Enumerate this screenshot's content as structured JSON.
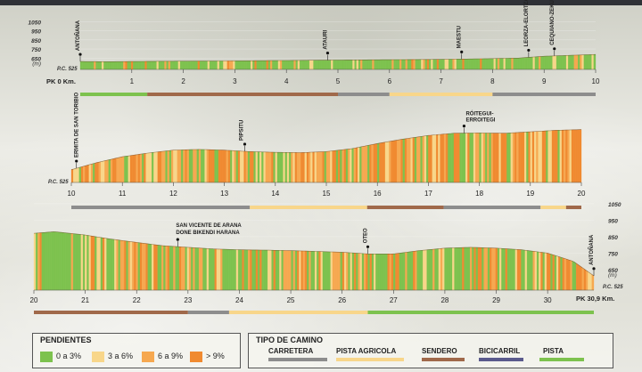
{
  "colors": {
    "grade_0_3": "#7dc24e",
    "grade_3_6": "#f8d68a",
    "grade_6_9": "#f6a850",
    "grade_9_plus": "#f08a30",
    "carretera": "#8d8d8d",
    "pista_agricola": "#f8d68a",
    "sendero": "#a0694a",
    "bicicarril": "#5a5a8c",
    "pista": "#7dc24e"
  },
  "legend": {
    "pendientes": {
      "title": "PENDIENTES",
      "items": [
        {
          "label": "0 a 3%",
          "color_key": "grade_0_3"
        },
        {
          "label": "3 a 6%",
          "color_key": "grade_3_6"
        },
        {
          "label": "6 a 9%",
          "color_key": "grade_6_9"
        },
        {
          "label": "> 9%",
          "color_key": "grade_9_plus"
        }
      ]
    },
    "tipo": {
      "title": "TIPO DE CAMINO",
      "items": [
        {
          "label": "CARRETERA",
          "color_key": "carretera"
        },
        {
          "label": "PISTA AGRICOLA",
          "color_key": "pista_agricola"
        },
        {
          "label": "SENDERO",
          "color_key": "sendero"
        },
        {
          "label": "BICICARRIL",
          "color_key": "bicicarril"
        },
        {
          "label": "PISTA",
          "color_key": "pista"
        }
      ]
    }
  },
  "chart_data": [
    {
      "type": "area",
      "x_range": [
        0,
        10
      ],
      "y_ticks": [
        650,
        750,
        850,
        950,
        1050
      ],
      "y_unit": "(m)",
      "pc_label": "P.C. 525",
      "start_label": "PK 0 Km.",
      "x_ticks": [
        "1",
        "2",
        "3",
        "4",
        "5",
        "6",
        "7",
        "8",
        "9",
        "10"
      ],
      "profile_km": [
        0,
        0.5,
        1,
        1.5,
        2,
        2.5,
        3,
        3.5,
        4,
        4.5,
        5,
        5.5,
        6,
        6.5,
        7,
        7.5,
        8,
        8.5,
        9,
        9.5,
        10
      ],
      "profile_m": [
        612,
        610,
        612,
        615,
        616,
        617,
        619,
        621,
        623,
        626,
        628,
        630,
        632,
        634,
        636,
        640,
        645,
        650,
        670,
        680,
        690
      ],
      "places": [
        {
          "name": "ANTOÑANA",
          "km": 0.0
        },
        {
          "name": "ATAURI",
          "km": 4.8
        },
        {
          "name": "MAESTU",
          "km": 7.4
        },
        {
          "name": "LEORZA-ELORTZA",
          "km": 8.7
        },
        {
          "name": "CEQUIANO-ZEKUIANO",
          "km": 9.2
        }
      ],
      "road": [
        {
          "from": 0.0,
          "to": 1.3,
          "type": "pista"
        },
        {
          "from": 1.3,
          "to": 5.0,
          "type": "sendero"
        },
        {
          "from": 5.0,
          "to": 6.0,
          "type": "carretera"
        },
        {
          "from": 6.0,
          "to": 7.0,
          "type": "pista_agricola"
        },
        {
          "from": 7.0,
          "to": 8.0,
          "type": "pista_agricola"
        },
        {
          "from": 8.0,
          "to": 10.0,
          "type": "carretera"
        }
      ]
    },
    {
      "type": "area",
      "x_range": [
        10,
        20
      ],
      "pc_label": "P.C. 525",
      "x_ticks": [
        "10",
        "11",
        "12",
        "13",
        "14",
        "15",
        "16",
        "17",
        "18",
        "19",
        "20"
      ],
      "profile_km": [
        10,
        10.5,
        11,
        11.5,
        12,
        12.5,
        13,
        13.5,
        14,
        14.5,
        15,
        15.5,
        16,
        16.5,
        17,
        17.5,
        18,
        18.5,
        19,
        19.5,
        20
      ],
      "profile_m": [
        612,
        660,
        700,
        725,
        745,
        750,
        745,
        735,
        730,
        728,
        735,
        755,
        790,
        820,
        845,
        860,
        862,
        860,
        870,
        880,
        885
      ],
      "places": [
        {
          "name": "ERMITA DE SAN TORIBIO",
          "km": 10.1
        },
        {
          "name": "PIPSITU",
          "km": 13.4
        },
        {
          "name": "RÓITEGUI-ERROITEGI",
          "km": 17.7
        }
      ],
      "road": [
        {
          "from": 10.0,
          "to": 13.5,
          "type": "carretera"
        },
        {
          "from": 13.5,
          "to": 15.8,
          "type": "pista_agricola"
        },
        {
          "from": 15.8,
          "to": 17.3,
          "type": "sendero"
        },
        {
          "from": 17.3,
          "to": 19.2,
          "type": "carretera"
        },
        {
          "from": 19.2,
          "to": 19.7,
          "type": "pista_agricola"
        },
        {
          "from": 19.7,
          "to": 20.0,
          "type": "sendero"
        }
      ]
    },
    {
      "type": "area",
      "x_range": [
        20,
        30.9
      ],
      "y_ticks": [
        650,
        750,
        850,
        950,
        1050
      ],
      "y_unit": "(m)",
      "pc_label": "P.C. 525",
      "end_label": "PK 30,9 Km.",
      "x_ticks": [
        "20",
        "21",
        "22",
        "23",
        "24",
        "25",
        "26",
        "27",
        "28",
        "29",
        "30"
      ],
      "profile_km": [
        20,
        20.4,
        21,
        21.5,
        22,
        22.5,
        23,
        23.5,
        24,
        24.5,
        25,
        25.5,
        26,
        26.5,
        27,
        27.5,
        28,
        28.5,
        29,
        29.5,
        30,
        30.5,
        30.9
      ],
      "profile_m": [
        870,
        880,
        860,
        835,
        815,
        795,
        785,
        775,
        770,
        768,
        765,
        760,
        755,
        745,
        745,
        765,
        780,
        785,
        780,
        770,
        750,
        700,
        612
      ],
      "places": [
        {
          "name": "SAN VICENTE DE ARANA DONE BIKENDI HARANA",
          "km": 22.8
        },
        {
          "name": "OTEO",
          "km": 26.5
        },
        {
          "name": "ANTOÑANA",
          "km": 30.9
        }
      ],
      "road": [
        {
          "from": 20.0,
          "to": 23.0,
          "type": "sendero"
        },
        {
          "from": 23.0,
          "to": 23.8,
          "type": "carretera"
        },
        {
          "from": 23.8,
          "to": 26.5,
          "type": "pista_agricola"
        },
        {
          "from": 26.5,
          "to": 30.9,
          "type": "pista"
        }
      ]
    }
  ]
}
